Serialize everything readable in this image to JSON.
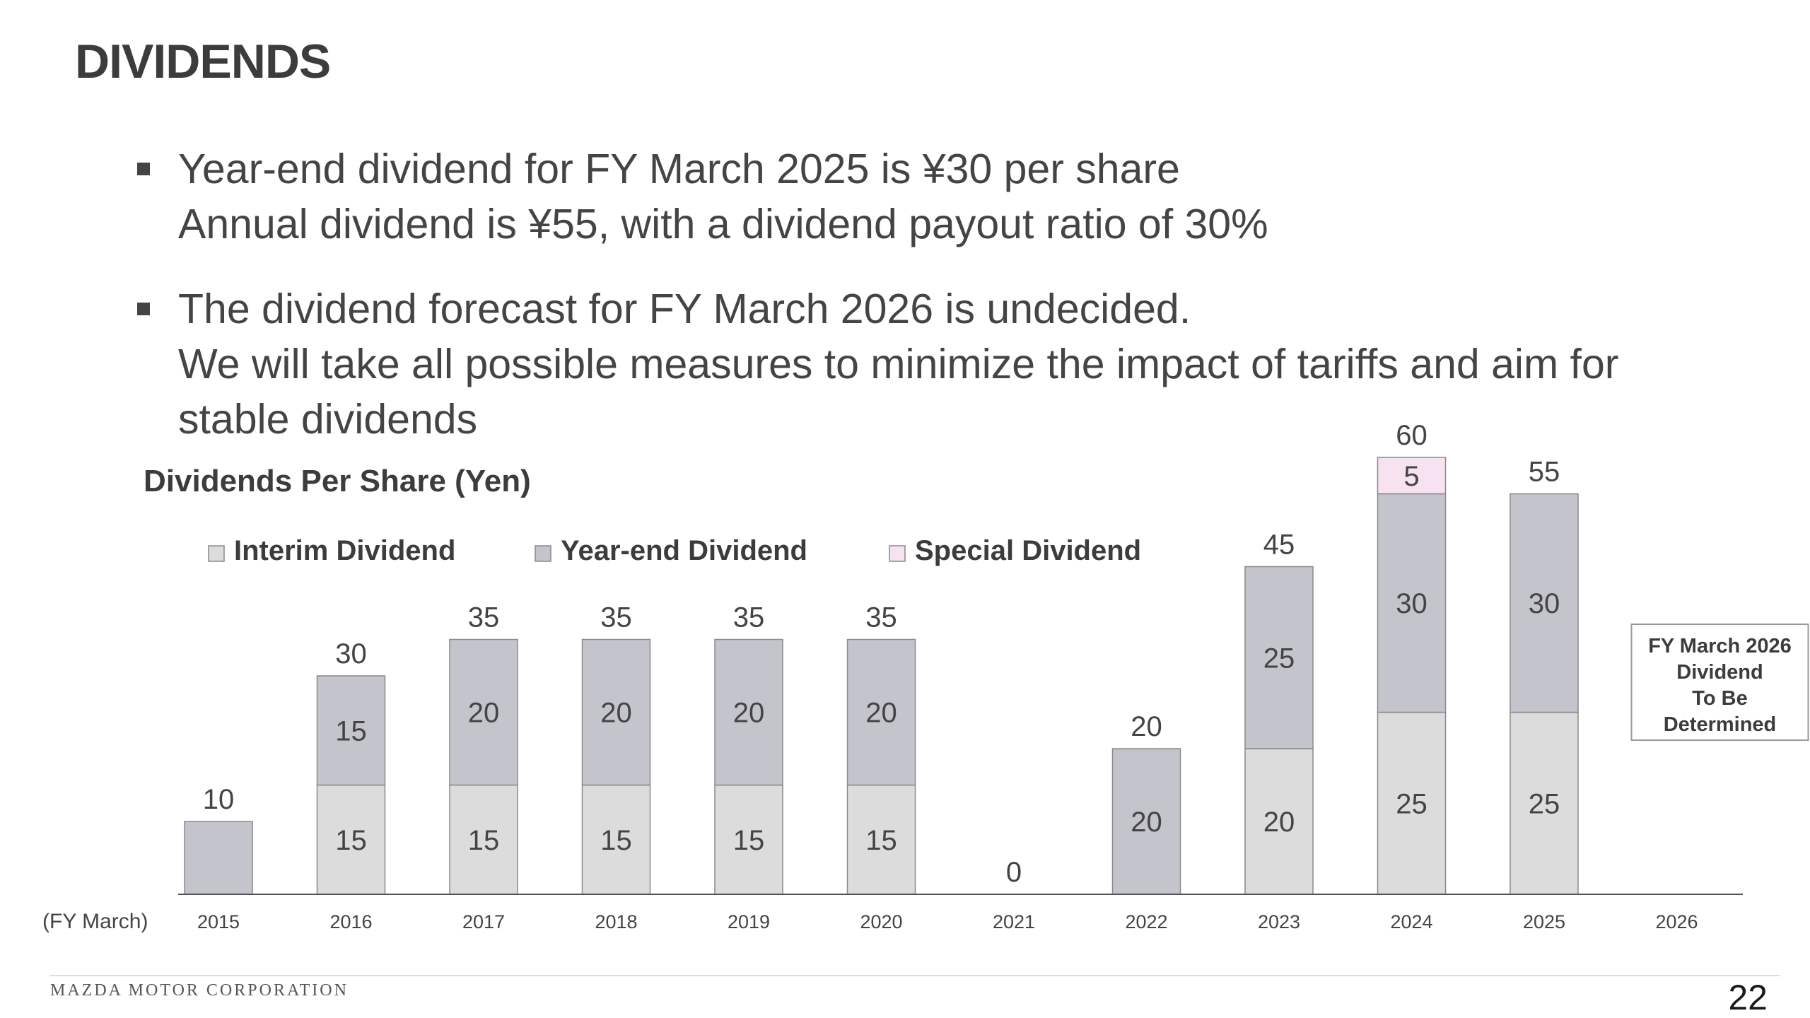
{
  "page": {
    "title": "DIVIDENDS",
    "bullets": [
      {
        "lines": [
          "Year-end dividend for FY March 2025 is ¥30 per share",
          "Annual dividend is ¥55, with a dividend payout ratio of 30%"
        ]
      },
      {
        "lines": [
          "The dividend forecast for FY March 2026 is undecided.",
          "We will take all possible measures to minimize the impact of tariffs and aim for",
          "stable dividends"
        ]
      }
    ],
    "footer": "MAZDA MOTOR CORPORATION",
    "page_number": "22"
  },
  "colors": {
    "interim": "#dcdcdc",
    "year_end": "#c3c4cc",
    "special": "#f7e2f1",
    "bar_edge": "#8a8a8a",
    "text": "#444444"
  },
  "chart_data": {
    "type": "bar",
    "stacked": true,
    "title": "Dividends Per Share (Yen)",
    "x_axis_label": "(FY March)",
    "categories": [
      "2015",
      "2016",
      "2017",
      "2018",
      "2019",
      "2020",
      "2021",
      "2022",
      "2023",
      "2024",
      "2025",
      "2026"
    ],
    "series": [
      {
        "name": "Interim Dividend",
        "color_key": "interim",
        "values": [
          0,
          15,
          15,
          15,
          15,
          15,
          0,
          0,
          20,
          25,
          25,
          null
        ]
      },
      {
        "name": "Year-end Dividend",
        "color_key": "year_end",
        "values": [
          10,
          15,
          20,
          20,
          20,
          20,
          0,
          20,
          25,
          30,
          30,
          null
        ]
      },
      {
        "name": "Special Dividend",
        "color_key": "special",
        "values": [
          0,
          0,
          0,
          0,
          0,
          0,
          0,
          0,
          0,
          5,
          0,
          null
        ]
      }
    ],
    "totals": [
      10,
      30,
      35,
      35,
      35,
      35,
      0,
      20,
      45,
      60,
      55,
      null
    ],
    "legend": {
      "placement": "top-left"
    },
    "annotation": {
      "category": "2026",
      "lines": [
        "FY March 2026",
        "Dividend",
        "To Be",
        "Determined"
      ]
    },
    "ylim": [
      0,
      60
    ],
    "grid": false
  }
}
